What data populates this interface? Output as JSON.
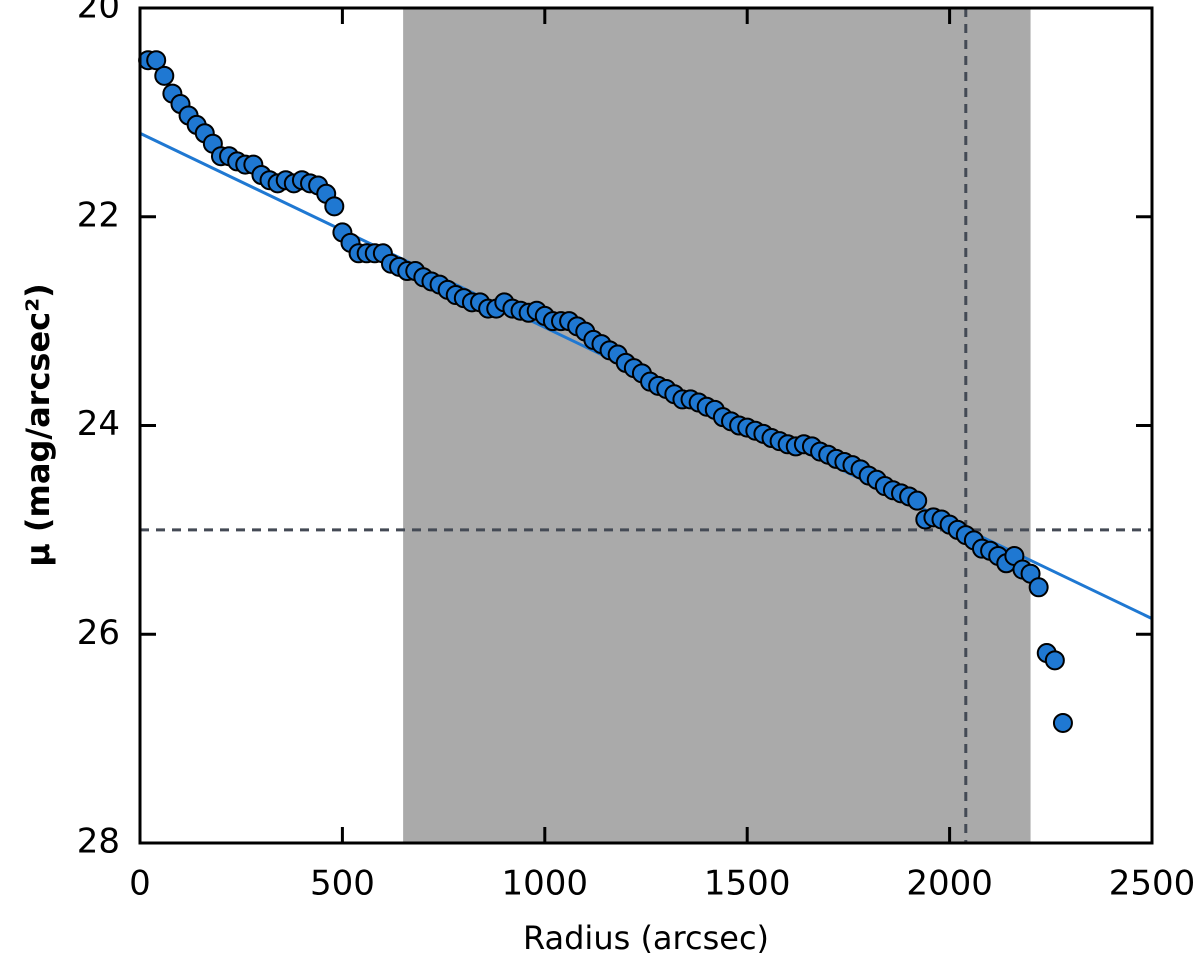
{
  "chart_data": {
    "type": "scatter",
    "x_label": "Radius (arcsec)",
    "y_label": "μ (mag/arcsec²)",
    "x": [
      20,
      40,
      60,
      80,
      100,
      120,
      140,
      160,
      180,
      200,
      220,
      240,
      260,
      280,
      300,
      320,
      340,
      360,
      380,
      400,
      420,
      440,
      460,
      480,
      500,
      520,
      540,
      560,
      580,
      600,
      620,
      640,
      660,
      680,
      700,
      720,
      740,
      760,
      780,
      800,
      820,
      840,
      860,
      880,
      900,
      920,
      940,
      960,
      980,
      1000,
      1020,
      1040,
      1060,
      1080,
      1100,
      1120,
      1140,
      1160,
      1180,
      1200,
      1220,
      1240,
      1260,
      1280,
      1300,
      1320,
      1340,
      1360,
      1380,
      1400,
      1420,
      1440,
      1460,
      1480,
      1500,
      1520,
      1540,
      1560,
      1580,
      1600,
      1620,
      1640,
      1660,
      1680,
      1700,
      1720,
      1740,
      1760,
      1780,
      1800,
      1820,
      1840,
      1860,
      1880,
      1900,
      1920,
      1940,
      1960,
      1980,
      2000,
      2020,
      2040,
      2060,
      2080,
      2100,
      2120,
      2140,
      2160,
      2180,
      2200,
      2220,
      2240,
      2260,
      2280
    ],
    "values": [
      20.5,
      20.5,
      20.65,
      20.82,
      20.92,
      21.03,
      21.12,
      21.2,
      21.3,
      21.42,
      21.42,
      21.47,
      21.5,
      21.5,
      21.6,
      21.65,
      21.68,
      21.65,
      21.68,
      21.65,
      21.68,
      21.7,
      21.78,
      21.9,
      22.15,
      22.25,
      22.35,
      22.35,
      22.35,
      22.35,
      22.45,
      22.48,
      22.52,
      22.52,
      22.58,
      22.62,
      22.65,
      22.7,
      22.75,
      22.78,
      22.82,
      22.82,
      22.88,
      22.88,
      22.82,
      22.88,
      22.9,
      22.92,
      22.9,
      22.95,
      23.0,
      23.0,
      23.0,
      23.05,
      23.1,
      23.18,
      23.22,
      23.28,
      23.32,
      23.4,
      23.45,
      23.5,
      23.58,
      23.62,
      23.65,
      23.7,
      23.75,
      23.75,
      23.78,
      23.82,
      23.85,
      23.92,
      23.96,
      24.0,
      24.02,
      24.05,
      24.08,
      24.12,
      24.15,
      24.18,
      24.2,
      24.18,
      24.2,
      24.25,
      24.28,
      24.32,
      24.35,
      24.38,
      24.42,
      24.48,
      24.52,
      24.58,
      24.62,
      24.65,
      24.68,
      24.72,
      24.9,
      24.88,
      24.9,
      24.95,
      25.0,
      25.05,
      25.1,
      25.18,
      25.2,
      25.25,
      25.32,
      25.25,
      25.38,
      25.42,
      25.55,
      26.18,
      26.25,
      26.85
    ],
    "color": "#1f78d2",
    "fit_line": {
      "x": [
        0,
        2500
      ],
      "y": [
        21.2,
        25.85
      ],
      "color": "#1f78d2"
    },
    "shaded_region": [
      650,
      2200
    ],
    "shade_color": "#aaaaaa",
    "hlines": [
      25
    ],
    "vlines": [
      2040
    ],
    "xlim": [
      0,
      2500
    ],
    "ylim": [
      20,
      28
    ],
    "y_inverted": true,
    "xticks": [
      0,
      500,
      1000,
      1500,
      2000,
      2500
    ],
    "yticks": [
      20,
      22,
      24,
      26,
      28
    ]
  }
}
